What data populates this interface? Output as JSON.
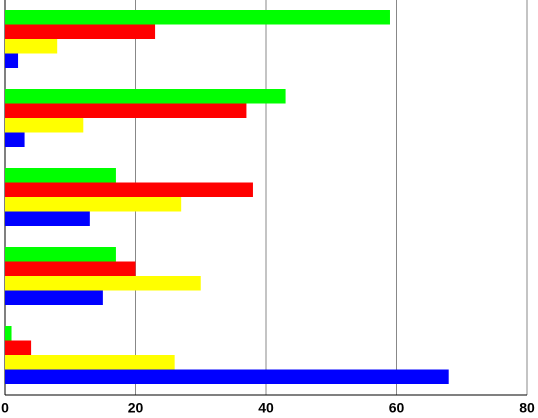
{
  "chart_data": {
    "type": "bar",
    "orientation": "horizontal",
    "categories": [
      null,
      null,
      null,
      null,
      null
    ],
    "series": [
      {
        "color": "#00ff00",
        "values": [
          59,
          43,
          17,
          17,
          1
        ]
      },
      {
        "color": "#ff0000",
        "values": [
          23,
          37,
          38,
          20,
          4
        ]
      },
      {
        "color": "#ffff00",
        "values": [
          8,
          12,
          27,
          30,
          26
        ]
      },
      {
        "color": "#0000ff",
        "values": [
          2,
          3,
          13,
          15,
          68
        ]
      }
    ],
    "xlim": [
      0,
      80
    ],
    "xticks": [
      0,
      20,
      40,
      60,
      80
    ],
    "grid": true
  }
}
